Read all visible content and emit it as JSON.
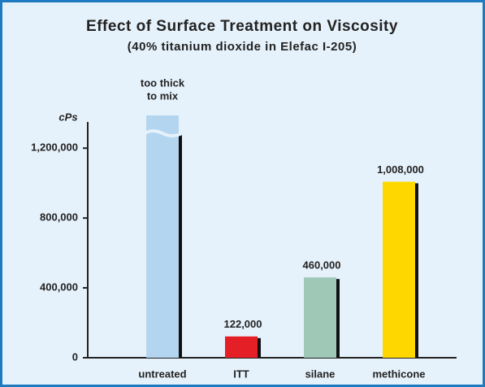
{
  "chart_data": {
    "type": "bar",
    "title": "Effect of Surface Treatment on Viscosity",
    "subtitle": "(40% titanium dioxide in Elefac I-205)",
    "y_axis_label": "cPs",
    "categories": [
      "untreated",
      "ITT",
      "silane",
      "methicone"
    ],
    "values": [
      null,
      122000,
      460000,
      1008000
    ],
    "value_labels": [
      null,
      "122,000",
      "460,000",
      "1,008,000"
    ],
    "annotation": [
      "too thick",
      "to mix"
    ],
    "colors": [
      "#b3d5ef",
      "#e41f26",
      "#a0c8b6",
      "#ffd700"
    ],
    "ylim": [
      0,
      1350000
    ],
    "yticks": [
      0,
      {
        "value": 400000,
        "label": "400,000"
      },
      {
        "value": 800000,
        "label": "800,000"
      },
      {
        "value": 1200000,
        "label": "1,200,000"
      }
    ]
  }
}
